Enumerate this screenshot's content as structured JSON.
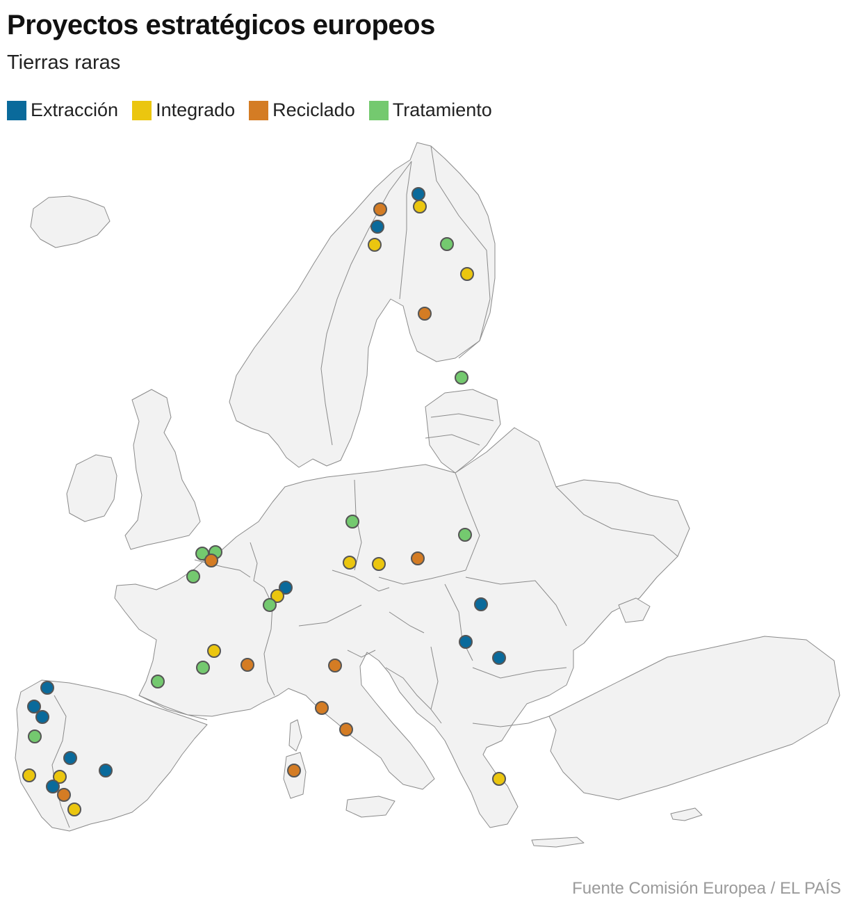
{
  "header": {
    "title": "Proyectos estratégicos europeos",
    "subtitle": "Tierras raras"
  },
  "legend": [
    {
      "label": "Extracción",
      "color": "#0a6a9b"
    },
    {
      "label": "Integrado",
      "color": "#ebc60f"
    },
    {
      "label": "Reciclado",
      "color": "#d47c24"
    },
    {
      "label": "Tratamiento",
      "color": "#74c96f"
    }
  ],
  "map": {
    "land_color": "#f2f2f2",
    "border_color": "#8a8a8a",
    "marker_stroke": "#555555",
    "projects": [
      {
        "type": "Extracción",
        "place": "Laponia finlandesa (norte)"
      },
      {
        "type": "Integrado",
        "place": "Laponia finlandesa"
      },
      {
        "type": "Reciclado",
        "place": "Kiruna"
      },
      {
        "type": "Extracción",
        "place": "Kiruna"
      },
      {
        "type": "Integrado",
        "place": "Gällivare"
      },
      {
        "type": "Tratamiento",
        "place": "Laponia finlandesa (este)"
      },
      {
        "type": "Integrado",
        "place": "Finlandia norte-centro"
      },
      {
        "type": "Reciclado",
        "place": "Finlandia central"
      },
      {
        "type": "Tratamiento",
        "place": "Estonia"
      },
      {
        "type": "Tratamiento",
        "place": "Alemania oriental"
      },
      {
        "type": "Tratamiento",
        "place": "Polonia oriental"
      },
      {
        "type": "Integrado",
        "place": "Chequia"
      },
      {
        "type": "Integrado",
        "place": "Chequia"
      },
      {
        "type": "Reciclado",
        "place": "Polonia sur"
      },
      {
        "type": "Tratamiento",
        "place": "Bélgica"
      },
      {
        "type": "Tratamiento",
        "place": "Bélgica"
      },
      {
        "type": "Reciclado",
        "place": "Bélgica"
      },
      {
        "type": "Tratamiento",
        "place": "Francia norte"
      },
      {
        "type": "Extracción",
        "place": "Alemania suroeste"
      },
      {
        "type": "Integrado",
        "place": "Alemania suroeste"
      },
      {
        "type": "Tratamiento",
        "place": "Francia este"
      },
      {
        "type": "Extracción",
        "place": "Rumanía norte"
      },
      {
        "type": "Extracción",
        "place": "Rumanía oeste"
      },
      {
        "type": "Extracción",
        "place": "Rumanía sur"
      },
      {
        "type": "Integrado",
        "place": "Francia centro"
      },
      {
        "type": "Tratamiento",
        "place": "Francia centro-sur"
      },
      {
        "type": "Reciclado",
        "place": "Francia sureste"
      },
      {
        "type": "Tratamiento",
        "place": "Francia suroeste"
      },
      {
        "type": "Reciclado",
        "place": "Italia norte"
      },
      {
        "type": "Reciclado",
        "place": "Italia centro"
      },
      {
        "type": "Reciclado",
        "place": "Italia centro"
      },
      {
        "type": "Reciclado",
        "place": "Cerdeña"
      },
      {
        "type": "Integrado",
        "place": "Grecia norte"
      },
      {
        "type": "Extracción",
        "place": "Galicia"
      },
      {
        "type": "Extracción",
        "place": "Portugal norte"
      },
      {
        "type": "Extracción",
        "place": "Portugal norte"
      },
      {
        "type": "Tratamiento",
        "place": "Portugal centro"
      },
      {
        "type": "Extracción",
        "place": "Portugal interior"
      },
      {
        "type": "Extracción",
        "place": "España centro-oeste"
      },
      {
        "type": "Integrado",
        "place": "Portugal sur"
      },
      {
        "type": "Integrado",
        "place": "Alentejo"
      },
      {
        "type": "Extracción",
        "place": "Alentejo"
      },
      {
        "type": "Reciclado",
        "place": "Andalucía oeste"
      },
      {
        "type": "Integrado",
        "place": "Andalucía oeste"
      }
    ]
  },
  "footer": {
    "source": "Fuente Comisión Europea / EL PAÍS"
  }
}
